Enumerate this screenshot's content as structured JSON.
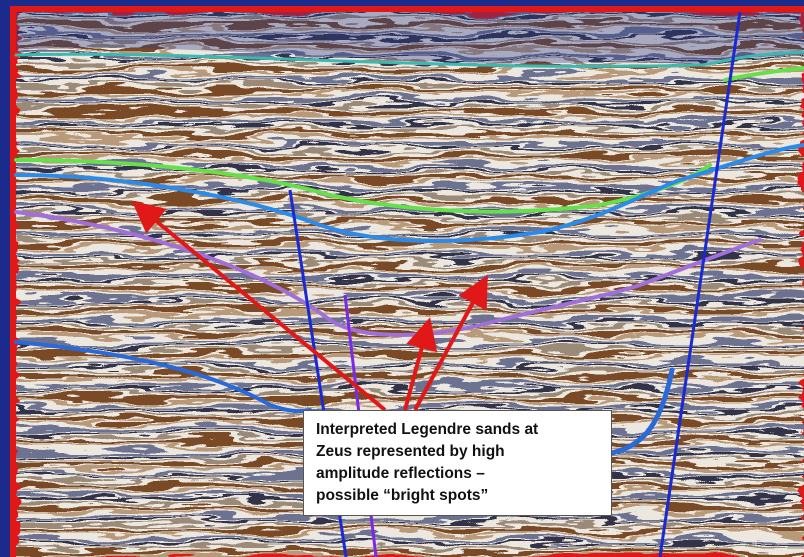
{
  "annotation": {
    "lines": [
      "Interpreted Legendre sands at",
      "Zeus represented by high",
      "amplitude reflections –",
      "possible “bright spots”"
    ]
  }
}
